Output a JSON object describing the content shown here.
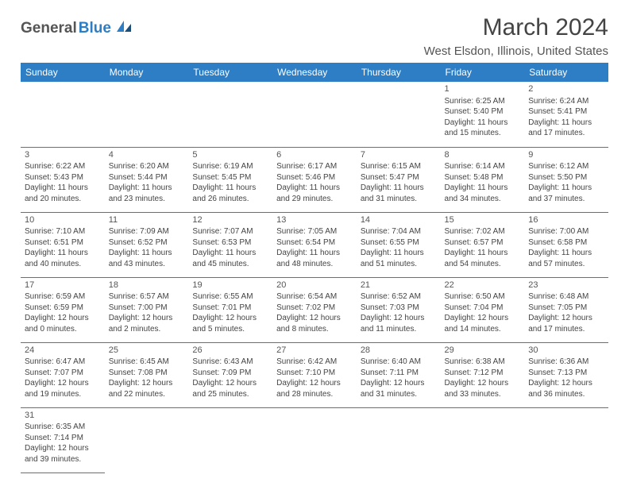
{
  "logo": {
    "general": "General",
    "blue": "Blue"
  },
  "title": "March 2024",
  "location": "West Elsdon, Illinois, United States",
  "colors": {
    "headerBg": "#2d7ec4",
    "border": "#2d7ec4",
    "text": "#444"
  },
  "weekdays": [
    "Sunday",
    "Monday",
    "Tuesday",
    "Wednesday",
    "Thursday",
    "Friday",
    "Saturday"
  ],
  "weeks": [
    [
      null,
      null,
      null,
      null,
      null,
      {
        "n": "1",
        "sr": "Sunrise: 6:25 AM",
        "ss": "Sunset: 5:40 PM",
        "dl": "Daylight: 11 hours and 15 minutes."
      },
      {
        "n": "2",
        "sr": "Sunrise: 6:24 AM",
        "ss": "Sunset: 5:41 PM",
        "dl": "Daylight: 11 hours and 17 minutes."
      }
    ],
    [
      {
        "n": "3",
        "sr": "Sunrise: 6:22 AM",
        "ss": "Sunset: 5:43 PM",
        "dl": "Daylight: 11 hours and 20 minutes."
      },
      {
        "n": "4",
        "sr": "Sunrise: 6:20 AM",
        "ss": "Sunset: 5:44 PM",
        "dl": "Daylight: 11 hours and 23 minutes."
      },
      {
        "n": "5",
        "sr": "Sunrise: 6:19 AM",
        "ss": "Sunset: 5:45 PM",
        "dl": "Daylight: 11 hours and 26 minutes."
      },
      {
        "n": "6",
        "sr": "Sunrise: 6:17 AM",
        "ss": "Sunset: 5:46 PM",
        "dl": "Daylight: 11 hours and 29 minutes."
      },
      {
        "n": "7",
        "sr": "Sunrise: 6:15 AM",
        "ss": "Sunset: 5:47 PM",
        "dl": "Daylight: 11 hours and 31 minutes."
      },
      {
        "n": "8",
        "sr": "Sunrise: 6:14 AM",
        "ss": "Sunset: 5:48 PM",
        "dl": "Daylight: 11 hours and 34 minutes."
      },
      {
        "n": "9",
        "sr": "Sunrise: 6:12 AM",
        "ss": "Sunset: 5:50 PM",
        "dl": "Daylight: 11 hours and 37 minutes."
      }
    ],
    [
      {
        "n": "10",
        "sr": "Sunrise: 7:10 AM",
        "ss": "Sunset: 6:51 PM",
        "dl": "Daylight: 11 hours and 40 minutes."
      },
      {
        "n": "11",
        "sr": "Sunrise: 7:09 AM",
        "ss": "Sunset: 6:52 PM",
        "dl": "Daylight: 11 hours and 43 minutes."
      },
      {
        "n": "12",
        "sr": "Sunrise: 7:07 AM",
        "ss": "Sunset: 6:53 PM",
        "dl": "Daylight: 11 hours and 45 minutes."
      },
      {
        "n": "13",
        "sr": "Sunrise: 7:05 AM",
        "ss": "Sunset: 6:54 PM",
        "dl": "Daylight: 11 hours and 48 minutes."
      },
      {
        "n": "14",
        "sr": "Sunrise: 7:04 AM",
        "ss": "Sunset: 6:55 PM",
        "dl": "Daylight: 11 hours and 51 minutes."
      },
      {
        "n": "15",
        "sr": "Sunrise: 7:02 AM",
        "ss": "Sunset: 6:57 PM",
        "dl": "Daylight: 11 hours and 54 minutes."
      },
      {
        "n": "16",
        "sr": "Sunrise: 7:00 AM",
        "ss": "Sunset: 6:58 PM",
        "dl": "Daylight: 11 hours and 57 minutes."
      }
    ],
    [
      {
        "n": "17",
        "sr": "Sunrise: 6:59 AM",
        "ss": "Sunset: 6:59 PM",
        "dl": "Daylight: 12 hours and 0 minutes."
      },
      {
        "n": "18",
        "sr": "Sunrise: 6:57 AM",
        "ss": "Sunset: 7:00 PM",
        "dl": "Daylight: 12 hours and 2 minutes."
      },
      {
        "n": "19",
        "sr": "Sunrise: 6:55 AM",
        "ss": "Sunset: 7:01 PM",
        "dl": "Daylight: 12 hours and 5 minutes."
      },
      {
        "n": "20",
        "sr": "Sunrise: 6:54 AM",
        "ss": "Sunset: 7:02 PM",
        "dl": "Daylight: 12 hours and 8 minutes."
      },
      {
        "n": "21",
        "sr": "Sunrise: 6:52 AM",
        "ss": "Sunset: 7:03 PM",
        "dl": "Daylight: 12 hours and 11 minutes."
      },
      {
        "n": "22",
        "sr": "Sunrise: 6:50 AM",
        "ss": "Sunset: 7:04 PM",
        "dl": "Daylight: 12 hours and 14 minutes."
      },
      {
        "n": "23",
        "sr": "Sunrise: 6:48 AM",
        "ss": "Sunset: 7:05 PM",
        "dl": "Daylight: 12 hours and 17 minutes."
      }
    ],
    [
      {
        "n": "24",
        "sr": "Sunrise: 6:47 AM",
        "ss": "Sunset: 7:07 PM",
        "dl": "Daylight: 12 hours and 19 minutes."
      },
      {
        "n": "25",
        "sr": "Sunrise: 6:45 AM",
        "ss": "Sunset: 7:08 PM",
        "dl": "Daylight: 12 hours and 22 minutes."
      },
      {
        "n": "26",
        "sr": "Sunrise: 6:43 AM",
        "ss": "Sunset: 7:09 PM",
        "dl": "Daylight: 12 hours and 25 minutes."
      },
      {
        "n": "27",
        "sr": "Sunrise: 6:42 AM",
        "ss": "Sunset: 7:10 PM",
        "dl": "Daylight: 12 hours and 28 minutes."
      },
      {
        "n": "28",
        "sr": "Sunrise: 6:40 AM",
        "ss": "Sunset: 7:11 PM",
        "dl": "Daylight: 12 hours and 31 minutes."
      },
      {
        "n": "29",
        "sr": "Sunrise: 6:38 AM",
        "ss": "Sunset: 7:12 PM",
        "dl": "Daylight: 12 hours and 33 minutes."
      },
      {
        "n": "30",
        "sr": "Sunrise: 6:36 AM",
        "ss": "Sunset: 7:13 PM",
        "dl": "Daylight: 12 hours and 36 minutes."
      }
    ],
    [
      {
        "n": "31",
        "sr": "Sunrise: 6:35 AM",
        "ss": "Sunset: 7:14 PM",
        "dl": "Daylight: 12 hours and 39 minutes."
      },
      null,
      null,
      null,
      null,
      null,
      null
    ]
  ]
}
